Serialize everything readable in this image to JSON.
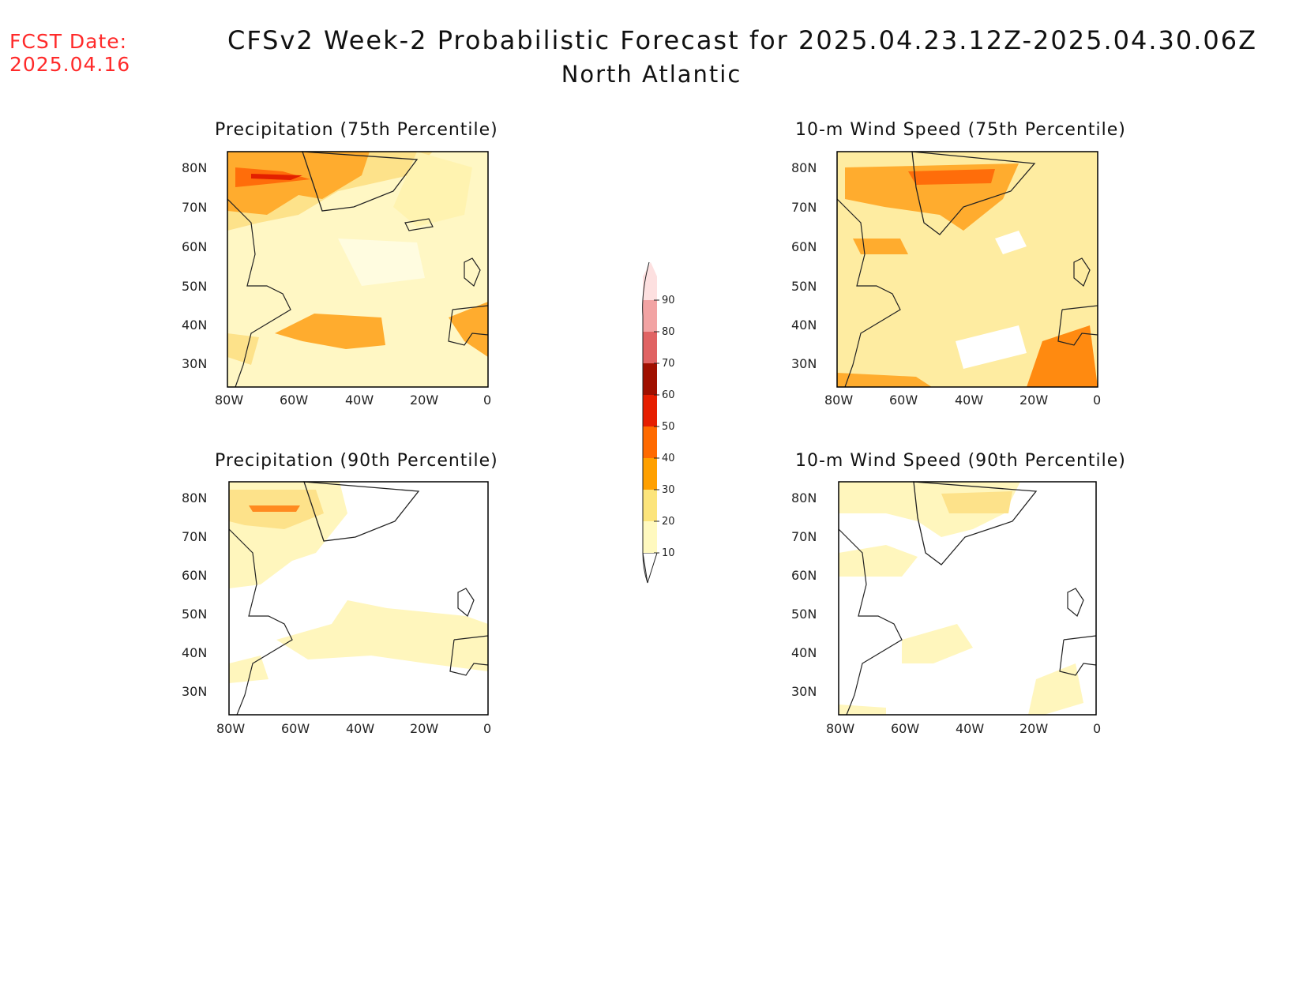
{
  "header": {
    "fcst_label": "FCST Date:",
    "fcst_date": "2025.04.16",
    "title": "CFSv2 Week-2 Probabilistic Forecast for 2025.04.23.12Z-2025.04.30.06Z",
    "region": "North Atlantic"
  },
  "panels": [
    {
      "id": "precip75",
      "title": "Precipitation (75th Percentile)"
    },
    {
      "id": "wind75",
      "title": "10-m Wind Speed (75th Percentile)"
    },
    {
      "id": "precip90",
      "title": "Precipitation (90th Percentile)"
    },
    {
      "id": "wind90",
      "title": "10-m Wind Speed (90th Percentile)"
    }
  ],
  "axes": {
    "lat_labels": [
      "80N",
      "70N",
      "60N",
      "50N",
      "40N",
      "30N"
    ],
    "lon_labels": [
      "80W",
      "60W",
      "40W",
      "20W",
      "0"
    ]
  },
  "colorbar": {
    "levels": [
      "10",
      "20",
      "30",
      "40",
      "50",
      "60",
      "70",
      "80",
      "90"
    ],
    "colors": [
      "#fff9bf",
      "#fce47b",
      "#ffa000",
      "#ff6a00",
      "#e61e00",
      "#a01000",
      "#e06363",
      "#f2a3a3",
      "#fde0e0"
    ]
  }
}
